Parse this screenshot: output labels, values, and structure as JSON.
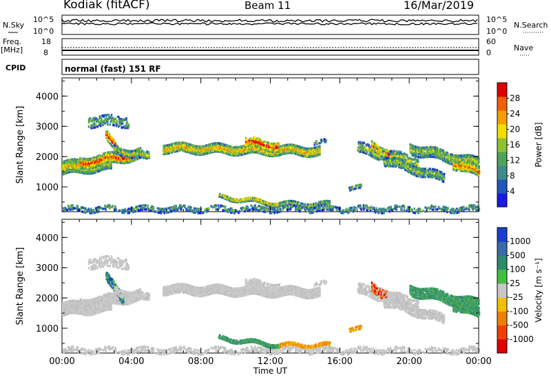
{
  "header": {
    "station": "Kodiak",
    "mode": "(fitACF)",
    "beam": "Beam 11",
    "date": "16/Mar/2019"
  },
  "strips": {
    "nsky_label": "N.Sky",
    "nsky_ticks": [
      "10^5",
      "10^0"
    ],
    "nsearch_label": "N.Search",
    "freq_label_top": "Freq.",
    "freq_label_unit": "[MHz]",
    "freq_ticks": [
      "18",
      "8"
    ],
    "nave_ticks": [
      "60",
      "0"
    ],
    "nave_label": "Nave",
    "cpid_label": "CPID",
    "cpid_value": "normal (fast) 151 RF"
  },
  "chart_data": [
    {
      "type": "heatmap",
      "name": "power",
      "ylabel": "Slant Range [km]",
      "ylim": [
        180,
        4600
      ],
      "yticks": [
        1000,
        2000,
        3000,
        4000
      ],
      "xlim": [
        0,
        24
      ],
      "xticks": [
        "00:00",
        "04:00",
        "08:00",
        "12:00",
        "16:00",
        "20:00",
        "00:00"
      ],
      "colorbar": {
        "label": "Power [dB]",
        "range": [
          0,
          32
        ],
        "ticks": [
          "4",
          "8",
          "12",
          "16",
          "20",
          "24",
          "28"
        ],
        "colors": [
          "#1a1ae6",
          "#2458b8",
          "#3f8b8b",
          "#4fa35a",
          "#8fc232",
          "#f0e000",
          "#f5a000",
          "#f06000",
          "#e00000"
        ]
      }
    },
    {
      "type": "heatmap",
      "name": "velocity",
      "ylabel": "Slant Range [km]",
      "ylim": [
        180,
        4600
      ],
      "yticks": [
        1000,
        2000,
        3000,
        4000
      ],
      "xlim": [
        0,
        24
      ],
      "xticks": [
        "00:00",
        "04:00",
        "08:00",
        "12:00",
        "16:00",
        "20:00",
        "00:00"
      ],
      "xlabel": "Time UT",
      "colorbar": {
        "label": "Velocity [m s⁻¹]",
        "ticks": [
          "1000",
          "500",
          "100",
          "25",
          "-25",
          "-100",
          "-500",
          "-1000"
        ],
        "colors": [
          "#1a3fd0",
          "#3a6aa8",
          "#2e8a6e",
          "#40c040",
          "#c8c8c8",
          "#f0c000",
          "#f08000",
          "#f04000",
          "#e00000"
        ]
      }
    }
  ]
}
